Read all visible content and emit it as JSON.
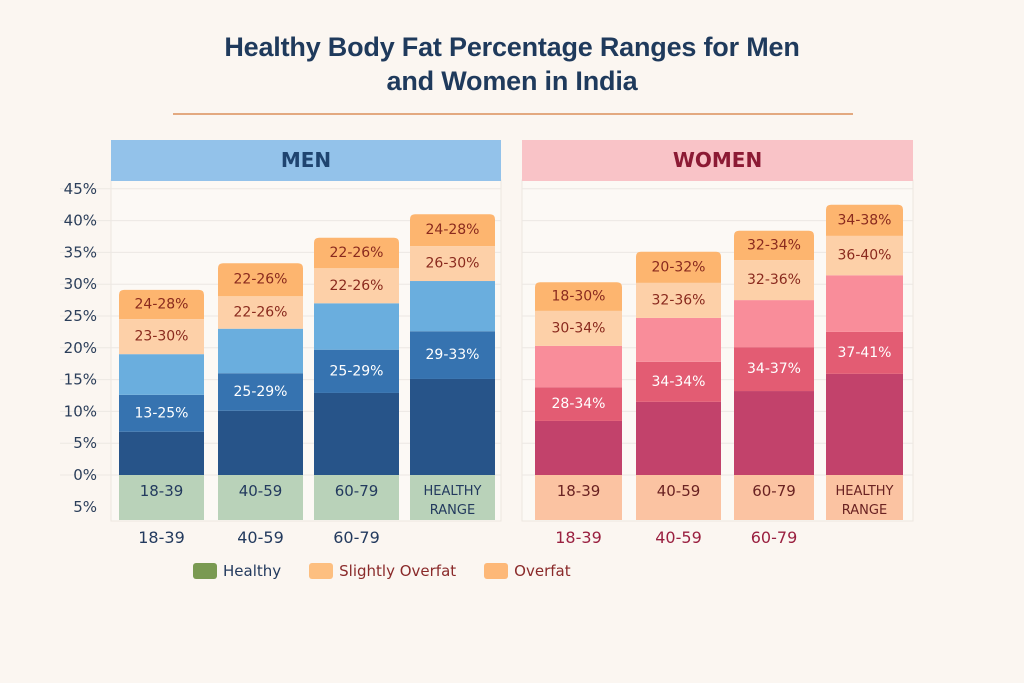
{
  "title_line1": "Healthy Body Fat Percentage Ranges for Men",
  "title_line2": "and Women in India",
  "chart_data": {
    "type": "bar",
    "subtype": "stacked",
    "title": "Healthy Body Fat Percentage Ranges for Men and Women in India",
    "xlabel": "",
    "ylabel": "",
    "y_ticks": [
      "45%",
      "40%",
      "35%",
      "30%",
      "25%",
      "20%",
      "15%",
      "10%",
      "5%",
      "0%",
      "5%"
    ],
    "ylim": [
      -5,
      45
    ],
    "grid": true,
    "legend_position": "bottom",
    "legend": [
      {
        "label": "Healthy",
        "color": "#7a9a52",
        "text_color": "#233a5e"
      },
      {
        "label": "Slightly Overfat",
        "color": "#fdbf80",
        "text_color": "#8a2a2a"
      },
      {
        "label": "Overfat",
        "color": "#fdb878",
        "text_color": "#8a2a2a"
      }
    ],
    "panels": [
      {
        "name": "MEN",
        "header_color": "#93c2ea",
        "title_color": "#1f4470",
        "base_color": "#b9d2b9",
        "base_text_color": "#233a5e",
        "category_label_color": "#233a5e",
        "segment_colors": [
          "#275489",
          "#3673b0",
          "#6aaede",
          "#fdd0a8",
          "#fdb56f"
        ],
        "segment_text_colors": [
          "#ffffff",
          "#ffffff",
          "#ffffff",
          "#8a2a1e",
          "#8a2a1e"
        ],
        "bars": [
          {
            "category": "18-39",
            "base_label": "18-39",
            "boundaries": [
              0,
              6.8,
              12.6,
              19.0,
              24.5,
              29.1
            ],
            "labels": [
              "",
              "13-25%",
              "",
              "23-30%",
              "24-28%"
            ]
          },
          {
            "category": "40-59",
            "base_label": "40-59",
            "boundaries": [
              0,
              10.1,
              16.0,
              23.0,
              28.1,
              33.3
            ],
            "labels": [
              "",
              "25-29%",
              "",
              "22-26%",
              "22-26%"
            ]
          },
          {
            "category": "60-79",
            "base_label": "60-79",
            "boundaries": [
              0,
              12.9,
              19.7,
              27.0,
              32.5,
              37.3
            ],
            "labels": [
              "",
              "25-29%",
              "",
              "22-26%",
              "22-26%"
            ]
          },
          {
            "category": "",
            "base_label": "HEALTHY RANGE",
            "boundaries": [
              0,
              15.1,
              22.6,
              30.5,
              36.0,
              41.0
            ],
            "labels": [
              "",
              "29-33%",
              "",
              "26-30%",
              "24-28%"
            ]
          }
        ]
      },
      {
        "name": "WOMEN",
        "header_color": "#f9c3c7",
        "title_color": "#8c1a34",
        "base_color": "#fbc3a2",
        "base_text_color": "#6a2222",
        "category_label_color": "#9a2040",
        "segment_colors": [
          "#c2426b",
          "#e35c73",
          "#f98d9a",
          "#fdd0a8",
          "#fdb56f"
        ],
        "segment_text_colors": [
          "#ffffff",
          "#ffffff",
          "#ffffff",
          "#8a2a1e",
          "#8a2a1e"
        ],
        "bars": [
          {
            "category": "18-39",
            "base_label": "18-39",
            "boundaries": [
              0,
              8.5,
              13.8,
              20.3,
              25.8,
              30.3
            ],
            "labels": [
              "",
              "28-34%",
              "",
              "30-34%",
              "18-30%"
            ]
          },
          {
            "category": "40-59",
            "base_label": "40-59",
            "boundaries": [
              0,
              11.5,
              17.8,
              24.7,
              30.2,
              35.1
            ],
            "labels": [
              "",
              "34-34%",
              "",
              "32-36%",
              "20-32%"
            ]
          },
          {
            "category": "60-79",
            "base_label": "60-79",
            "boundaries": [
              0,
              13.2,
              20.1,
              27.5,
              33.8,
              38.4
            ],
            "labels": [
              "",
              "34-37%",
              "",
              "32-36%",
              "32-34%"
            ]
          },
          {
            "category": "",
            "base_label": "HEALTHY RANGE",
            "boundaries": [
              0,
              15.9,
              22.5,
              31.4,
              37.6,
              42.5
            ],
            "labels": [
              "",
              "37-41%",
              "",
              "36-40%",
              "34-38%"
            ]
          }
        ]
      }
    ]
  }
}
